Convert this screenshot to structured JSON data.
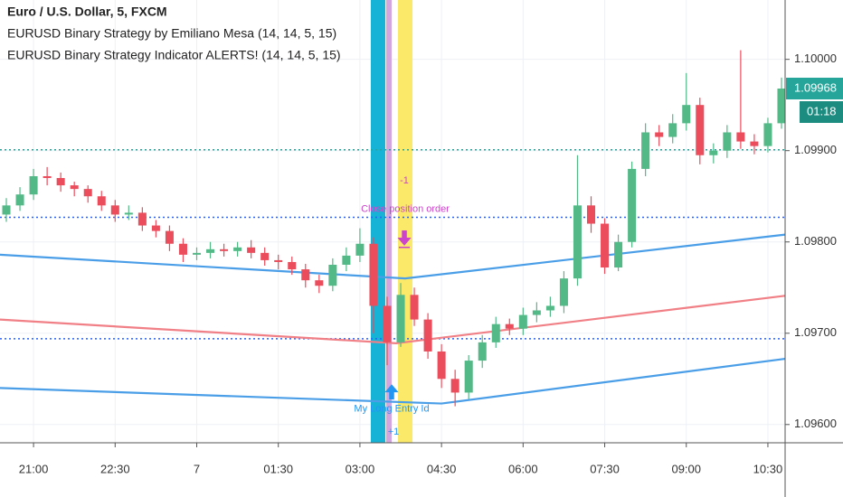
{
  "chart_data": {
    "type": "candlestick",
    "title": "Euro / U.S. Dollar, 5, FXCM",
    "indicators": [
      "EURUSD Binary Strategy by Emiliano Mesa (14, 14, 5, 15)",
      "EURUSD Binary Strategy Indicator ALERTS! (14, 14, 5, 15)"
    ],
    "x": [
      1230,
      1245,
      1260,
      1275,
      1290,
      1305,
      1320,
      1335,
      1350,
      1365,
      1380,
      1395,
      1410,
      1425,
      1440,
      1455,
      1470,
      1485,
      1500,
      1515,
      1530,
      1545,
      1560,
      1575,
      1590,
      1605,
      1620,
      1635,
      1650,
      1665,
      1680,
      1695,
      1710,
      1725,
      1740,
      1755,
      1770,
      1785,
      1800,
      1815,
      1830,
      1845,
      1860,
      1875,
      1890,
      1905,
      1920,
      1935,
      1950,
      1965,
      1980,
      1995,
      2010,
      2025,
      2040,
      2055,
      2070,
      2085
    ],
    "open": [
      1.0983,
      1.0984,
      1.09852,
      1.09872,
      1.0987,
      1.09862,
      1.09858,
      1.0985,
      1.0984,
      1.0983,
      1.09832,
      1.09818,
      1.09812,
      1.09798,
      1.09786,
      1.09788,
      1.09792,
      1.0979,
      1.09794,
      1.09788,
      1.0978,
      1.09778,
      1.0977,
      1.09758,
      1.09752,
      1.09775,
      1.09785,
      1.09798,
      1.0973,
      1.0969,
      1.09742,
      1.09715,
      1.0968,
      1.0965,
      1.09635,
      1.0967,
      1.0969,
      1.0971,
      1.09705,
      1.0972,
      1.09725,
      1.0973,
      1.0976,
      1.0984,
      1.0982,
      1.09772,
      1.098,
      1.0988,
      1.0992,
      1.09915,
      1.0993,
      1.0995,
      1.09895,
      1.099,
      1.0992,
      1.0991,
      1.09905,
      1.0993
    ],
    "high": [
      1.09848,
      1.0986,
      1.0988,
      1.09882,
      1.09876,
      1.09866,
      1.09862,
      1.09856,
      1.09846,
      1.0984,
      1.09838,
      1.09824,
      1.09818,
      1.09804,
      1.09794,
      1.098,
      1.09798,
      1.098,
      1.09802,
      1.09794,
      1.09786,
      1.09784,
      1.09776,
      1.09764,
      1.09782,
      1.09794,
      1.09815,
      1.09805,
      1.0974,
      1.09755,
      1.0975,
      1.09722,
      1.09688,
      1.0966,
      1.09676,
      1.09698,
      1.09718,
      1.09716,
      1.09728,
      1.09734,
      1.0974,
      1.09768,
      1.09895,
      1.0985,
      1.09826,
      1.09808,
      1.09888,
      1.0993,
      1.09928,
      1.0994,
      1.09985,
      1.09958,
      1.09908,
      1.09928,
      1.1001,
      1.09918,
      1.09936,
      1.0998
    ],
    "low": [
      1.09822,
      1.09834,
      1.09846,
      1.09862,
      1.09855,
      1.0985,
      1.09843,
      1.09834,
      1.09822,
      1.09824,
      1.09812,
      1.09805,
      1.0979,
      1.09778,
      1.0978,
      1.09782,
      1.09784,
      1.09784,
      1.09782,
      1.09774,
      1.0977,
      1.09764,
      1.0975,
      1.09744,
      1.09746,
      1.09768,
      1.09778,
      1.097,
      1.09665,
      1.09685,
      1.09708,
      1.09672,
      1.0964,
      1.0962,
      1.09628,
      1.09662,
      1.09684,
      1.09698,
      1.09698,
      1.09712,
      1.09718,
      1.09722,
      1.09752,
      1.0981,
      1.09765,
      1.09768,
      1.09794,
      1.09872,
      1.09905,
      1.09908,
      1.09922,
      1.09885,
      1.09886,
      1.09892,
      1.09902,
      1.09896,
      1.09898,
      1.09924
    ],
    "close": [
      1.0984,
      1.09852,
      1.09872,
      1.0987,
      1.09862,
      1.09858,
      1.0985,
      1.0984,
      1.0983,
      1.09832,
      1.09818,
      1.09812,
      1.09798,
      1.09786,
      1.09788,
      1.09792,
      1.0979,
      1.09794,
      1.09788,
      1.0978,
      1.09778,
      1.0977,
      1.09758,
      1.09752,
      1.09775,
      1.09785,
      1.09798,
      1.0973,
      1.0969,
      1.09742,
      1.09715,
      1.0968,
      1.0965,
      1.09635,
      1.0967,
      1.0969,
      1.0971,
      1.09705,
      1.0972,
      1.09725,
      1.0973,
      1.0976,
      1.0984,
      1.0982,
      1.09772,
      1.098,
      1.0988,
      1.0992,
      1.09915,
      1.0993,
      1.0995,
      1.09895,
      1.099,
      1.0992,
      1.0991,
      1.09905,
      1.0993,
      1.09968
    ],
    "up_color": "#53b987",
    "down_color": "#eb4d5c",
    "lines": [
      {
        "color": "#4a9ee8",
        "x": [
          1223,
          1670,
          2089
        ],
        "values": [
          1.09786,
          1.0976,
          1.09808
        ]
      },
      {
        "color": "#f07f86",
        "x": [
          1223,
          1660,
          2089
        ],
        "values": [
          1.09715,
          1.09689,
          1.09741
        ]
      },
      {
        "color": "#4a9ee8",
        "x": [
          1223,
          1710,
          2089
        ],
        "values": [
          1.0964,
          1.09623,
          1.09672
        ]
      }
    ],
    "levels": [
      {
        "value": 1.09901,
        "color": "#26a69a"
      },
      {
        "value": 1.09827,
        "color": "#2962ff"
      },
      {
        "value": 1.09694,
        "color": "#2962ff"
      }
    ],
    "bands": [
      {
        "x": [
          1632,
          1648
        ],
        "color": "#17b3d6"
      },
      {
        "x": [
          1649,
          1655
        ],
        "color": "#d3a6e0"
      },
      {
        "x": [
          1662,
          1678
        ],
        "color": "#fbe96a"
      }
    ],
    "annotations": [
      {
        "text": "Close position order",
        "x": 1670,
        "y": 1.09836,
        "color": "#cc44cc"
      },
      {
        "text": "-1",
        "x": 1669,
        "y": 1.09867,
        "color": "#cc44cc"
      },
      {
        "text": "My Long Entry Id",
        "x": 1655,
        "y": 1.09617,
        "color": "#2196f3"
      },
      {
        "text": "+1",
        "x": 1657,
        "y": 1.09592,
        "color": "#2196f3"
      }
    ],
    "markers": [
      {
        "x": 1669,
        "y": 1.098,
        "direction": "down",
        "color": "#cc44cc"
      },
      {
        "x": 1655,
        "y": 1.0964,
        "direction": "up",
        "color": "#2196f3"
      }
    ],
    "last_price": {
      "value": 1.09968,
      "label": "1.09968"
    },
    "countdown": "01:18",
    "xlim": [
      1223,
      2089
    ],
    "ylim": [
      1.0958,
      1.10065
    ],
    "xticks": [
      {
        "value": 1260,
        "label": "21:00"
      },
      {
        "value": 1350,
        "label": "22:30"
      },
      {
        "value": 1440,
        "label": "7"
      },
      {
        "value": 1530,
        "label": "01:30"
      },
      {
        "value": 1620,
        "label": "03:00"
      },
      {
        "value": 1710,
        "label": "04:30"
      },
      {
        "value": 1800,
        "label": "06:00"
      },
      {
        "value": 1890,
        "label": "07:30"
      },
      {
        "value": 1980,
        "label": "09:00"
      },
      {
        "value": 2070,
        "label": "10:30"
      }
    ],
    "yticks": [
      {
        "value": 1.096,
        "label": "1.09600"
      },
      {
        "value": 1.097,
        "label": "1.09700"
      },
      {
        "value": 1.098,
        "label": "1.09800"
      },
      {
        "value": 1.099,
        "label": "1.09900"
      },
      {
        "value": 1.1,
        "label": "1.10000"
      }
    ],
    "grid": true
  }
}
